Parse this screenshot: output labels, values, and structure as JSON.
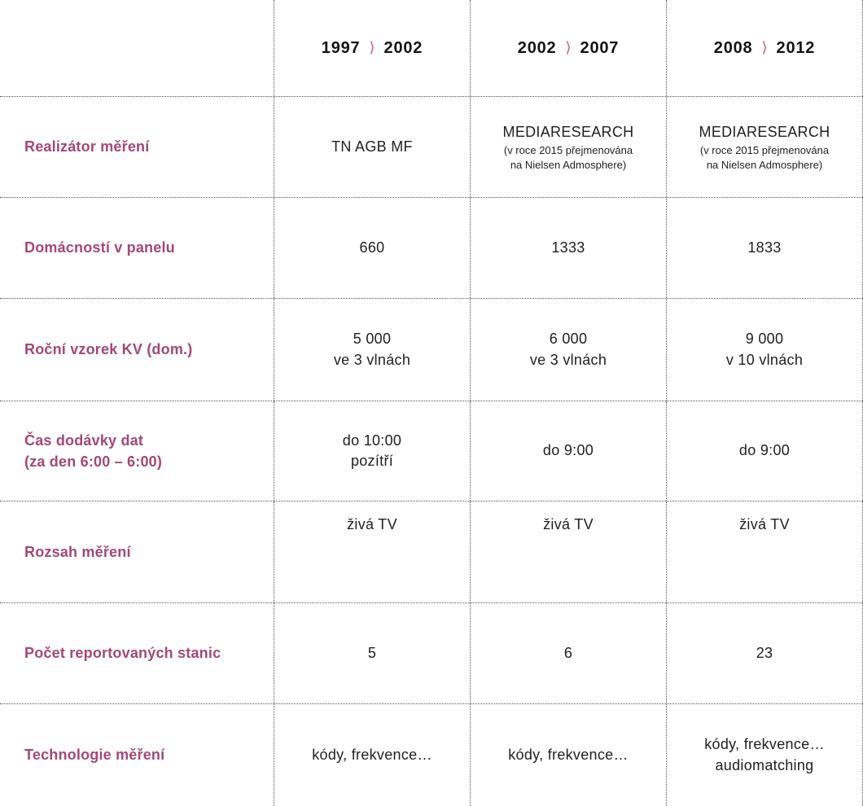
{
  "colors": {
    "row_label": "#a34876",
    "chevron": "#e25069",
    "cell_text": "#212121",
    "grid_dotted": "#555555"
  },
  "header": {
    "chevron_icon": "⟩",
    "columns": [
      {
        "from": "1997",
        "to": "2002"
      },
      {
        "from": "2002",
        "to": "2007"
      },
      {
        "from": "2008",
        "to": "2012"
      }
    ]
  },
  "rows": [
    {
      "label": "Realizátor měření",
      "cells": [
        {
          "main": "TN AGB MF",
          "sub": ""
        },
        {
          "main": "MEDIARESEARCH",
          "sub": "(v roce 2015 přejmenována\nna Nielsen Admosphere)"
        },
        {
          "main": "MEDIARESEARCH",
          "sub": "(v roce 2015 přejmenována\nna Nielsen Admosphere)"
        }
      ]
    },
    {
      "label": "Domácností v panelu",
      "cells": [
        {
          "main": "660",
          "sub": ""
        },
        {
          "main": "1333",
          "sub": ""
        },
        {
          "main": "1833",
          "sub": ""
        }
      ]
    },
    {
      "label": "Roční vzorek KV (dom.)",
      "cells": [
        {
          "main": "5 000\nve 3 vlnách",
          "sub": ""
        },
        {
          "main": "6 000\nve 3 vlnách",
          "sub": ""
        },
        {
          "main": "9 000\nv 10 vlnách",
          "sub": ""
        }
      ]
    },
    {
      "label": "Čas dodávky dat\n(za den 6:00 – 6:00)",
      "cells": [
        {
          "main": "do 10:00\npozítří",
          "sub": ""
        },
        {
          "main": "do 9:00",
          "sub": ""
        },
        {
          "main": "do 9:00",
          "sub": ""
        }
      ]
    },
    {
      "label": "Rozsah měření",
      "cells": [
        {
          "main": "živá TV",
          "sub": ""
        },
        {
          "main": "živá TV",
          "sub": ""
        },
        {
          "main": "živá TV",
          "sub": ""
        }
      ]
    },
    {
      "label": "Počet reportovaných stanic",
      "cells": [
        {
          "main": "5",
          "sub": ""
        },
        {
          "main": "6",
          "sub": ""
        },
        {
          "main": "23",
          "sub": ""
        }
      ]
    },
    {
      "label": "Technologie měření",
      "cells": [
        {
          "main": "kódy, frekvence…",
          "sub": ""
        },
        {
          "main": "kódy, frekvence…",
          "sub": ""
        },
        {
          "main": "kódy, frekvence…\naudiomatching",
          "sub": ""
        }
      ]
    }
  ],
  "chart_data": {
    "type": "table",
    "title": "",
    "column_headers": [
      "",
      "1997 ⟩ 2002",
      "2002 ⟩ 2007",
      "2008 ⟩ 2012"
    ],
    "rows": [
      [
        "Realizátor měření",
        "TN AGB MF",
        "MEDIARESEARCH (v roce 2015 přejmenována na Nielsen Admosphere)",
        "MEDIARESEARCH (v roce 2015 přejmenována na Nielsen Admosphere)"
      ],
      [
        "Domácností v panelu",
        "660",
        "1333",
        "1833"
      ],
      [
        "Roční vzorek KV (dom.)",
        "5 000 ve 3 vlnách",
        "6 000 ve 3 vlnách",
        "9 000 v 10 vlnách"
      ],
      [
        "Čas dodávky dat (za den 6:00 – 6:00)",
        "do 10:00 pozítří",
        "do 9:00",
        "do 9:00"
      ],
      [
        "Rozsah měření",
        "živá TV",
        "živá TV",
        "živá TV"
      ],
      [
        "Počet reportovaných stanic",
        "5",
        "6",
        "23"
      ],
      [
        "Technologie měření",
        "kódy, frekvence…",
        "kódy, frekvence…",
        "kódy, frekvence… audiomatching"
      ]
    ]
  }
}
